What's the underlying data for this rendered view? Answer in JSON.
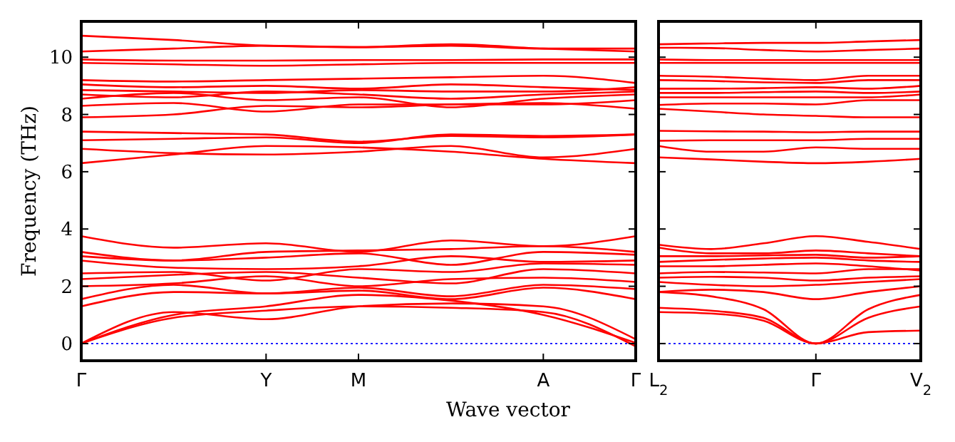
{
  "chart_data": [
    {
      "type": "line",
      "ylabel": "Frequency (THz)",
      "xlabel": "Wave vector",
      "categories": [
        "Γ",
        null,
        "Y",
        "M",
        null,
        "A",
        "Γ"
      ],
      "ylim": [
        -0.6,
        11.25
      ],
      "yticks": [
        0,
        2,
        4,
        6,
        8,
        10
      ],
      "grid": false,
      "ref_lines": [
        {
          "axis": "y",
          "value": 0,
          "color": "#0000ff",
          "line_style": "dotted"
        }
      ],
      "series": [
        {
          "color": "#ff0000",
          "values": [
            0,
            1.1,
            0.85,
            1.3,
            1.4,
            1.3,
            0.15
          ]
        },
        {
          "color": "#ff0000",
          "values": [
            0,
            0.9,
            1.15,
            1.3,
            1.25,
            1.1,
            -0.1
          ]
        },
        {
          "color": "#ff0000",
          "values": [
            0,
            1.0,
            1.3,
            1.7,
            1.5,
            1.0,
            0.02
          ]
        },
        {
          "color": "#ff0000",
          "values": [
            1.3,
            1.8,
            1.75,
            1.85,
            1.55,
            1.95,
            1.55
          ]
        },
        {
          "color": "#ff0000",
          "values": [
            1.55,
            2.05,
            1.75,
            1.95,
            1.65,
            2.05,
            1.9
          ]
        },
        {
          "color": "#ff0000",
          "values": [
            2.0,
            2.1,
            2.35,
            2.0,
            2.25,
            2.3,
            2.15
          ]
        },
        {
          "color": "#ff0000",
          "values": [
            2.25,
            2.4,
            2.5,
            2.3,
            2.1,
            2.6,
            2.45
          ]
        },
        {
          "color": "#ff0000",
          "values": [
            2.45,
            2.5,
            2.2,
            2.6,
            2.5,
            2.8,
            2.75
          ]
        },
        {
          "color": "#ff0000",
          "values": [
            2.9,
            2.65,
            2.6,
            2.7,
            3.05,
            2.85,
            2.9
          ]
        },
        {
          "color": "#ff0000",
          "values": [
            3.05,
            2.9,
            3.0,
            3.15,
            2.75,
            3.2,
            3.1
          ]
        },
        {
          "color": "#ff0000",
          "values": [
            3.2,
            2.9,
            3.2,
            3.25,
            3.3,
            3.4,
            3.2
          ]
        },
        {
          "color": "#ff0000",
          "values": [
            3.75,
            3.35,
            3.5,
            3.2,
            3.6,
            3.4,
            3.75
          ]
        },
        {
          "color": "#ff0000",
          "values": [
            6.3,
            6.6,
            6.9,
            6.85,
            6.7,
            6.45,
            6.3
          ]
        },
        {
          "color": "#ff0000",
          "values": [
            6.8,
            6.65,
            6.6,
            6.7,
            6.9,
            6.5,
            6.8
          ]
        },
        {
          "color": "#ff0000",
          "values": [
            7.1,
            7.15,
            7.2,
            7.0,
            7.3,
            7.25,
            7.3
          ]
        },
        {
          "color": "#ff0000",
          "values": [
            7.4,
            7.35,
            7.3,
            7.05,
            7.25,
            7.2,
            7.3
          ]
        },
        {
          "color": "#ff0000",
          "values": [
            7.9,
            8.0,
            8.3,
            8.25,
            8.35,
            8.4,
            8.2
          ]
        },
        {
          "color": "#ff0000",
          "values": [
            8.3,
            8.4,
            8.1,
            8.35,
            8.35,
            8.35,
            8.5
          ]
        },
        {
          "color": "#ff0000",
          "values": [
            8.55,
            8.75,
            8.5,
            8.6,
            8.25,
            8.55,
            8.7
          ]
        },
        {
          "color": "#ff0000",
          "values": [
            8.7,
            8.6,
            8.8,
            8.7,
            8.55,
            8.7,
            8.8
          ]
        },
        {
          "color": "#ff0000",
          "values": [
            8.85,
            8.8,
            8.75,
            8.85,
            8.8,
            8.8,
            8.95
          ]
        },
        {
          "color": "#ff0000",
          "values": [
            9.05,
            8.95,
            9.0,
            8.9,
            9.05,
            8.95,
            8.85
          ]
        },
        {
          "color": "#ff0000",
          "values": [
            9.2,
            9.15,
            9.2,
            9.25,
            9.3,
            9.35,
            9.1
          ]
        },
        {
          "color": "#ff0000",
          "values": [
            9.8,
            9.75,
            9.7,
            9.75,
            9.8,
            9.8,
            9.8
          ]
        },
        {
          "color": "#ff0000",
          "values": [
            9.92,
            9.88,
            9.88,
            9.9,
            9.9,
            9.92,
            9.92
          ]
        },
        {
          "color": "#ff0000",
          "values": [
            10.2,
            10.3,
            10.4,
            10.35,
            10.45,
            10.3,
            10.2
          ]
        },
        {
          "color": "#ff0000",
          "values": [
            10.75,
            10.6,
            10.4,
            10.35,
            10.4,
            10.3,
            10.3
          ]
        }
      ]
    },
    {
      "type": "line",
      "categories": [
        "L$_{2}$",
        null,
        null,
        "Γ",
        null,
        "V$_{2}$"
      ],
      "ylim": [
        -0.6,
        11.25
      ],
      "yticks": [
        {
          "value": 0,
          "label": null
        },
        {
          "value": 2,
          "label": null
        },
        {
          "value": 4,
          "label": null
        },
        {
          "value": 6,
          "label": null
        },
        {
          "value": 8,
          "label": null
        },
        {
          "value": 10,
          "label": null
        }
      ],
      "tick_labels": "x",
      "grid": false,
      "ref_lines": [
        {
          "axis": "y",
          "value": 0,
          "color": "#0000ff",
          "line_style": "dotted"
        }
      ],
      "series": [
        {
          "color": "#ff0000",
          "values": [
            1.1,
            1.05,
            0.8,
            0,
            0.4,
            0.45
          ]
        },
        {
          "color": "#ff0000",
          "values": [
            1.25,
            1.15,
            0.9,
            0,
            0.9,
            1.3
          ]
        },
        {
          "color": "#ff0000",
          "values": [
            1.8,
            1.65,
            1.2,
            0,
            1.2,
            1.7
          ]
        },
        {
          "color": "#ff0000",
          "values": [
            1.8,
            1.88,
            1.8,
            1.55,
            1.8,
            2.0
          ]
        },
        {
          "color": "#ff0000",
          "values": [
            2.15,
            2.05,
            2.0,
            2.05,
            2.15,
            2.25
          ]
        },
        {
          "color": "#ff0000",
          "values": [
            2.3,
            2.33,
            2.3,
            2.2,
            2.3,
            2.35
          ]
        },
        {
          "color": "#ff0000",
          "values": [
            2.45,
            2.5,
            2.48,
            2.45,
            2.6,
            2.6
          ]
        },
        {
          "color": "#ff0000",
          "values": [
            2.7,
            2.7,
            2.75,
            2.8,
            2.7,
            2.55
          ]
        },
        {
          "color": "#ff0000",
          "values": [
            2.85,
            2.92,
            2.97,
            3.0,
            2.9,
            2.85
          ]
        },
        {
          "color": "#ff0000",
          "values": [
            3.05,
            3.05,
            3.08,
            3.1,
            3.0,
            3.05
          ]
        },
        {
          "color": "#ff0000",
          "values": [
            3.35,
            3.15,
            3.15,
            3.25,
            3.15,
            3.05
          ]
        },
        {
          "color": "#ff0000",
          "values": [
            3.45,
            3.3,
            3.5,
            3.75,
            3.55,
            3.3
          ]
        },
        {
          "color": "#ff0000",
          "values": [
            6.5,
            6.43,
            6.35,
            6.3,
            6.35,
            6.45
          ]
        },
        {
          "color": "#ff0000",
          "values": [
            6.9,
            6.7,
            6.7,
            6.85,
            6.8,
            6.8
          ]
        },
        {
          "color": "#ff0000",
          "values": [
            7.08,
            7.1,
            7.1,
            7.1,
            7.15,
            7.15
          ]
        },
        {
          "color": "#ff0000",
          "values": [
            7.43,
            7.41,
            7.4,
            7.38,
            7.4,
            7.4
          ]
        },
        {
          "color": "#ff0000",
          "values": [
            8.2,
            8.1,
            8.0,
            7.95,
            7.9,
            7.9
          ]
        },
        {
          "color": "#ff0000",
          "values": [
            8.33,
            8.38,
            8.38,
            8.35,
            8.5,
            8.5
          ]
        },
        {
          "color": "#ff0000",
          "values": [
            8.6,
            8.6,
            8.6,
            8.6,
            8.6,
            8.7
          ]
        },
        {
          "color": "#ff0000",
          "values": [
            8.75,
            8.75,
            8.78,
            8.8,
            8.75,
            8.8
          ]
        },
        {
          "color": "#ff0000",
          "values": [
            8.9,
            8.9,
            8.92,
            8.95,
            8.9,
            9.0
          ]
        },
        {
          "color": "#ff0000",
          "values": [
            9.2,
            9.17,
            9.12,
            9.1,
            9.2,
            9.2
          ]
        },
        {
          "color": "#ff0000",
          "values": [
            9.35,
            9.32,
            9.25,
            9.2,
            9.35,
            9.35
          ]
        },
        {
          "color": "#ff0000",
          "values": [
            9.8,
            9.8,
            9.8,
            9.8,
            9.8,
            9.8
          ]
        },
        {
          "color": "#ff0000",
          "values": [
            9.92,
            9.9,
            9.9,
            9.9,
            9.9,
            9.9
          ]
        },
        {
          "color": "#ff0000",
          "values": [
            10.33,
            10.32,
            10.25,
            10.2,
            10.25,
            10.3
          ]
        },
        {
          "color": "#ff0000",
          "values": [
            10.45,
            10.48,
            10.5,
            10.5,
            10.55,
            10.6
          ]
        }
      ]
    }
  ]
}
